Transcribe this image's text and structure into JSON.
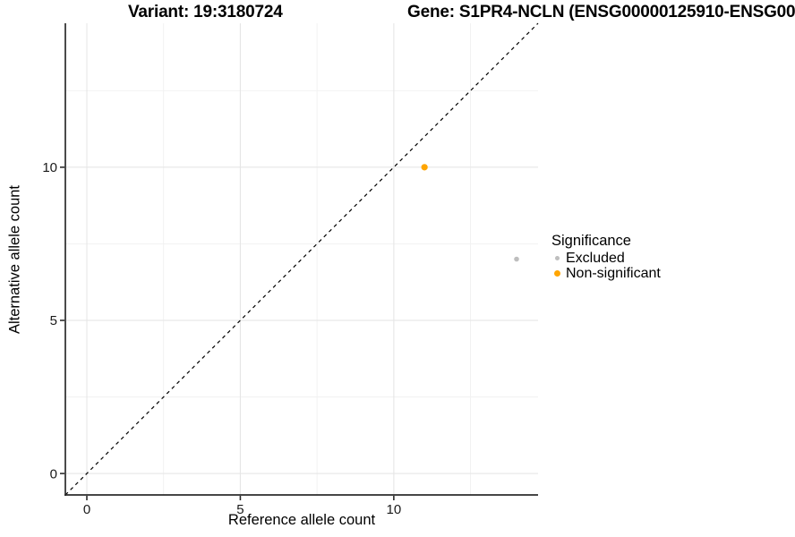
{
  "chart_data": {
    "type": "scatter",
    "title_left": "Variant: 19:3180724",
    "title_right": "Gene: S1PR4-NCLN (ENSG00000125910-ENSG00",
    "xlabel": "Reference allele count",
    "ylabel": "Alternative allele count",
    "xlim": [
      -0.7,
      14.7
    ],
    "ylim": [
      -0.7,
      14.7
    ],
    "xticks": [
      0,
      5,
      10
    ],
    "yticks": [
      0,
      5,
      10
    ],
    "minor_xticks": [
      2.5,
      7.5,
      12.5
    ],
    "minor_yticks": [
      2.5,
      7.5,
      12.5
    ],
    "grid": true,
    "legend_position": "right",
    "legend_title": "Significance",
    "identity_line": {
      "style": "dashed",
      "color": "#000000",
      "from": [
        -0.7,
        -0.7
      ],
      "to": [
        14.7,
        14.7
      ]
    },
    "series": [
      {
        "name": "Excluded",
        "color": "#BEBEBE",
        "point_size": 2.8,
        "points": [
          {
            "x": 14,
            "y": 7
          }
        ]
      },
      {
        "name": "Non-significant",
        "color": "#FFA500",
        "point_size": 3.6,
        "points": [
          {
            "x": 11,
            "y": 10
          }
        ]
      }
    ],
    "style": {
      "background": "#FFFFFF",
      "grid_major_color": "#E6E6E6",
      "grid_minor_color": "#F1F1F1",
      "axis_line_color": "#2B2B2B",
      "tick_label_color": "#1A1A1A"
    }
  }
}
